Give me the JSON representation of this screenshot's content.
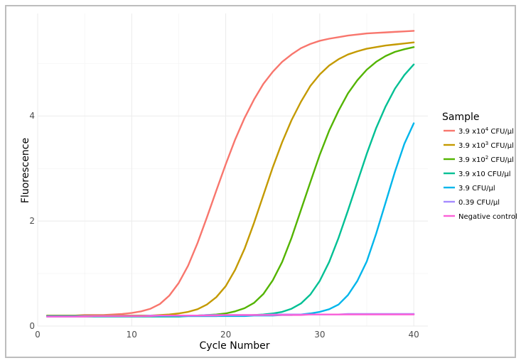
{
  "chart_data": {
    "type": "line",
    "xlabel": "Cycle Number",
    "ylabel": "Fluorescence",
    "xlim": [
      0,
      41.5
    ],
    "ylim": [
      0,
      5.95
    ],
    "xticks": [
      0,
      10,
      20,
      30,
      40
    ],
    "yticks": [
      0,
      2,
      4
    ],
    "grid": true,
    "legend": {
      "title": "Sample",
      "position": "right",
      "entries": [
        {
          "base": "3.9 x10",
          "sup": "4",
          "tail": " CFU/µl"
        },
        {
          "base": "3.9 x10",
          "sup": "3",
          "tail": " CFU/µl"
        },
        {
          "base": "3.9 x10",
          "sup": "2",
          "tail": " CFU/µl"
        },
        {
          "base": "3.9 x10 CFU/µl",
          "sup": "",
          "tail": ""
        },
        {
          "base": "3.9 CFU/µl",
          "sup": "",
          "tail": ""
        },
        {
          "base": "0.39 CFU/µl",
          "sup": "",
          "tail": ""
        },
        {
          "base": "Negative control",
          "sup": "",
          "tail": ""
        }
      ]
    },
    "x": [
      1,
      2,
      3,
      4,
      5,
      6,
      7,
      8,
      9,
      10,
      11,
      12,
      13,
      14,
      15,
      16,
      17,
      18,
      19,
      20,
      21,
      22,
      23,
      24,
      25,
      26,
      27,
      28,
      29,
      30,
      31,
      32,
      33,
      34,
      35,
      36,
      37,
      38,
      39,
      40
    ],
    "series": [
      {
        "name": "3.9 x10^4 CFU/µl",
        "color": "#F8766D",
        "values": [
          0.2,
          0.2,
          0.2,
          0.2,
          0.21,
          0.21,
          0.21,
          0.22,
          0.23,
          0.25,
          0.28,
          0.33,
          0.42,
          0.58,
          0.82,
          1.15,
          1.58,
          2.07,
          2.58,
          3.08,
          3.55,
          3.96,
          4.31,
          4.61,
          4.84,
          5.03,
          5.17,
          5.29,
          5.37,
          5.43,
          5.47,
          5.5,
          5.53,
          5.55,
          5.57,
          5.58,
          5.59,
          5.6,
          5.61,
          5.62
        ]
      },
      {
        "name": "3.9 x10^3 CFU/µl",
        "color": "#C49A00",
        "values": [
          0.2,
          0.2,
          0.2,
          0.2,
          0.2,
          0.2,
          0.2,
          0.2,
          0.2,
          0.2,
          0.2,
          0.2,
          0.21,
          0.22,
          0.24,
          0.27,
          0.32,
          0.41,
          0.55,
          0.76,
          1.07,
          1.47,
          1.96,
          2.49,
          3.02,
          3.5,
          3.92,
          4.27,
          4.57,
          4.79,
          4.96,
          5.08,
          5.17,
          5.23,
          5.28,
          5.31,
          5.34,
          5.36,
          5.38,
          5.4
        ]
      },
      {
        "name": "3.9 x10^2 CFU/µl",
        "color": "#53B400",
        "values": [
          0.19,
          0.19,
          0.19,
          0.19,
          0.19,
          0.19,
          0.19,
          0.19,
          0.19,
          0.19,
          0.19,
          0.19,
          0.19,
          0.19,
          0.2,
          0.2,
          0.2,
          0.21,
          0.22,
          0.24,
          0.28,
          0.34,
          0.44,
          0.61,
          0.87,
          1.22,
          1.68,
          2.21,
          2.74,
          3.26,
          3.72,
          4.1,
          4.43,
          4.68,
          4.88,
          5.03,
          5.14,
          5.22,
          5.27,
          5.31
        ]
      },
      {
        "name": "3.9 x10 CFU/µl",
        "color": "#00C094",
        "values": [
          0.18,
          0.18,
          0.18,
          0.18,
          0.18,
          0.18,
          0.18,
          0.18,
          0.18,
          0.18,
          0.18,
          0.18,
          0.18,
          0.18,
          0.18,
          0.19,
          0.19,
          0.19,
          0.19,
          0.2,
          0.2,
          0.2,
          0.21,
          0.22,
          0.24,
          0.27,
          0.33,
          0.43,
          0.6,
          0.86,
          1.22,
          1.68,
          2.2,
          2.74,
          3.28,
          3.77,
          4.18,
          4.52,
          4.78,
          4.98
        ]
      },
      {
        "name": "3.9 CFU/µl",
        "color": "#00B6EB",
        "values": [
          0.19,
          0.19,
          0.19,
          0.19,
          0.19,
          0.19,
          0.19,
          0.19,
          0.19,
          0.19,
          0.19,
          0.19,
          0.19,
          0.19,
          0.19,
          0.19,
          0.19,
          0.19,
          0.19,
          0.19,
          0.19,
          0.19,
          0.2,
          0.2,
          0.2,
          0.21,
          0.21,
          0.22,
          0.24,
          0.27,
          0.32,
          0.41,
          0.59,
          0.86,
          1.23,
          1.76,
          2.35,
          2.94,
          3.47,
          3.86
        ]
      },
      {
        "name": "0.39 CFU/µl",
        "color": "#A58AFF",
        "values": [
          0.18,
          0.18,
          0.18,
          0.18,
          0.19,
          0.19,
          0.19,
          0.19,
          0.19,
          0.19,
          0.19,
          0.2,
          0.2,
          0.2,
          0.2,
          0.2,
          0.2,
          0.21,
          0.21,
          0.21,
          0.21,
          0.21,
          0.21,
          0.21,
          0.22,
          0.22,
          0.22,
          0.22,
          0.22,
          0.22,
          0.22,
          0.22,
          0.23,
          0.23,
          0.23,
          0.23,
          0.23,
          0.23,
          0.23,
          0.23
        ]
      },
      {
        "name": "Negative control",
        "color": "#FB61D7",
        "values": [
          0.18,
          0.18,
          0.18,
          0.18,
          0.18,
          0.19,
          0.19,
          0.19,
          0.19,
          0.19,
          0.19,
          0.19,
          0.2,
          0.2,
          0.2,
          0.2,
          0.2,
          0.2,
          0.2,
          0.21,
          0.21,
          0.21,
          0.21,
          0.21,
          0.21,
          0.21,
          0.21,
          0.21,
          0.22,
          0.22,
          0.22,
          0.22,
          0.22,
          0.22,
          0.22,
          0.22,
          0.22,
          0.22,
          0.22,
          0.22
        ]
      }
    ]
  }
}
